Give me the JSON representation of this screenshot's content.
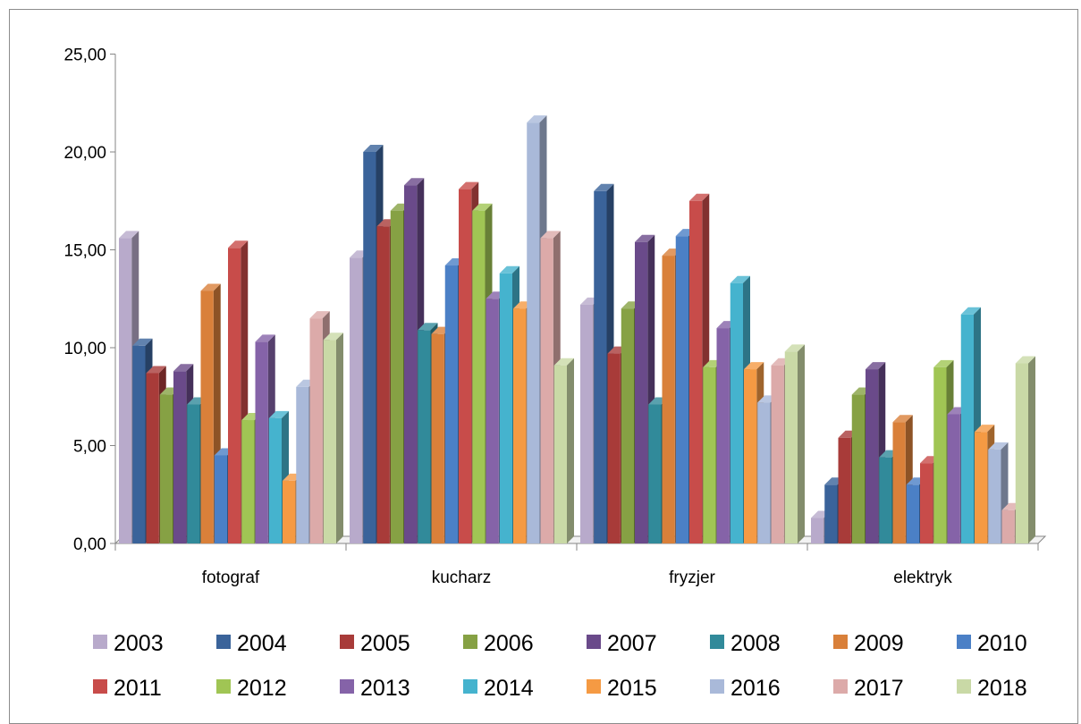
{
  "chart_data": {
    "type": "bar",
    "categories": [
      "fotograf",
      "kucharz",
      "fryzjer",
      "elektryk"
    ],
    "ylim": [
      0,
      25
    ],
    "yticks": [
      "0,00",
      "5,00",
      "10,00",
      "15,00",
      "20,00",
      "25,00"
    ],
    "grid": false,
    "legend_position": "bottom",
    "series": [
      {
        "name": "2003",
        "color": "#b8aacb",
        "values": [
          15.6,
          14.6,
          12.2,
          1.3
        ]
      },
      {
        "name": "2004",
        "color": "#3a639a",
        "values": [
          10.1,
          20.0,
          18.0,
          3.0
        ]
      },
      {
        "name": "2005",
        "color": "#a83b39",
        "values": [
          8.7,
          16.2,
          9.7,
          5.4
        ]
      },
      {
        "name": "2006",
        "color": "#86a144",
        "values": [
          7.6,
          17.0,
          12.0,
          7.6
        ]
      },
      {
        "name": "2007",
        "color": "#6a4a8a",
        "values": [
          8.8,
          18.3,
          15.4,
          8.9
        ]
      },
      {
        "name": "2008",
        "color": "#318a9a",
        "values": [
          7.1,
          10.9,
          7.1,
          4.4
        ]
      },
      {
        "name": "2009",
        "color": "#d9803a",
        "values": [
          12.9,
          10.7,
          14.7,
          6.2
        ]
      },
      {
        "name": "2010",
        "color": "#4b80c6",
        "values": [
          4.5,
          14.2,
          15.7,
          3.0
        ]
      },
      {
        "name": "2011",
        "color": "#c84c4a",
        "values": [
          15.1,
          18.1,
          17.5,
          4.1
        ]
      },
      {
        "name": "2012",
        "color": "#a0c554",
        "values": [
          6.3,
          17.0,
          9.0,
          9.0
        ]
      },
      {
        "name": "2013",
        "color": "#8563a8",
        "values": [
          10.3,
          12.5,
          11.0,
          6.6
        ]
      },
      {
        "name": "2014",
        "color": "#45b3ce",
        "values": [
          6.4,
          13.8,
          13.3,
          11.7
        ]
      },
      {
        "name": "2015",
        "color": "#f59a43",
        "values": [
          3.2,
          12.0,
          8.9,
          5.7
        ]
      },
      {
        "name": "2016",
        "color": "#a9b9d9",
        "values": [
          8.0,
          21.5,
          7.2,
          4.8
        ]
      },
      {
        "name": "2017",
        "color": "#dcaaa9",
        "values": [
          11.5,
          15.6,
          9.1,
          1.7
        ]
      },
      {
        "name": "2018",
        "color": "#c9d9a6",
        "values": [
          10.4,
          9.1,
          9.8,
          9.2
        ]
      }
    ]
  }
}
